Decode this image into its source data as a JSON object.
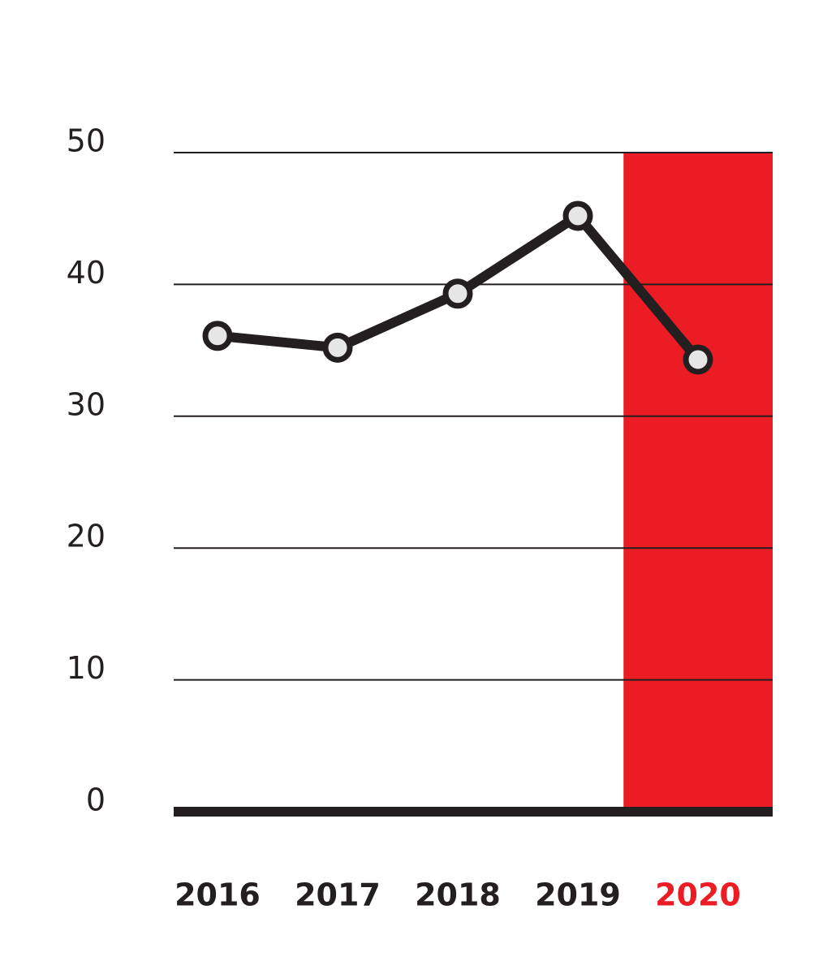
{
  "chart_data": {
    "type": "line",
    "categories": [
      "2016",
      "2017",
      "2018",
      "2019",
      "2020"
    ],
    "series": [
      {
        "color": "#231f20",
        "values": [
          36.1,
          35.2,
          39.3,
          45.2,
          34.3
        ]
      }
    ],
    "ylim": [
      0,
      50
    ],
    "yticks": [
      0,
      10,
      20,
      30,
      40,
      50
    ],
    "grid": true,
    "highlight": {
      "category": 4,
      "color": "#ec1c24"
    }
  }
}
